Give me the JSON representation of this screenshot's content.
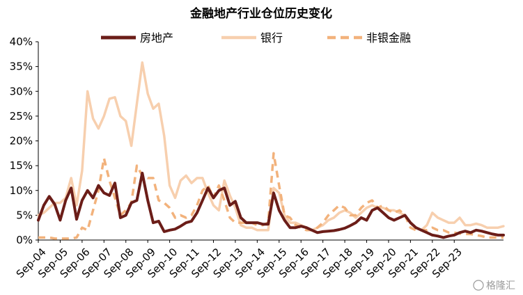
{
  "chart_data": {
    "type": "line",
    "title": "金融地产行业仓位历史变化",
    "xlabel": "",
    "ylabel": "",
    "x_start": "2004-09",
    "x_step_months": 3,
    "x_tick_labels": [
      "Sep-04",
      "Sep-05",
      "Sep-06",
      "Sep-07",
      "Sep-08",
      "Sep-09",
      "Sep-10",
      "Sep-11",
      "Sep-12",
      "Sep-13",
      "Sep-14",
      "Sep-15",
      "Sep-16",
      "Sep-17",
      "Sep-18",
      "Sep-19",
      "Sep-20",
      "Sep-21",
      "Sep-22",
      "Sep-23"
    ],
    "y_tick_labels": [
      "0%",
      "5%",
      "10%",
      "15%",
      "20%",
      "25%",
      "30%",
      "35%",
      "40%"
    ],
    "ylim": [
      0,
      40
    ],
    "y_unit": "%",
    "legend_position": "top",
    "grid": false,
    "series": [
      {
        "name": "房地产",
        "color": "#6b1d18",
        "dash": "solid",
        "values": [
          4.0,
          7.0,
          8.8,
          7.2,
          4.0,
          8.0,
          10.5,
          4.2,
          8.0,
          10.0,
          8.5,
          11.0,
          9.5,
          9.0,
          11.5,
          4.5,
          5.0,
          7.5,
          8.0,
          13.5,
          8.0,
          3.5,
          3.8,
          1.7,
          2.0,
          2.2,
          2.8,
          3.5,
          3.8,
          5.5,
          8.0,
          10.5,
          8.5,
          10.0,
          10.5,
          7.0,
          7.8,
          4.5,
          3.5,
          3.5,
          3.5,
          3.2,
          3.2,
          9.5,
          6.0,
          4.0,
          2.5,
          2.5,
          2.8,
          2.5,
          2.0,
          1.5,
          1.7,
          1.8,
          1.9,
          2.1,
          2.4,
          2.9,
          3.5,
          4.5,
          4.0,
          6.0,
          6.5,
          5.5,
          4.5,
          4.0,
          4.5,
          5.0,
          3.5,
          2.5,
          2.0,
          1.5,
          1.0,
          0.8,
          0.5,
          0.8,
          1.0,
          1.5,
          1.8,
          1.5,
          2.0,
          1.8,
          1.5,
          1.2,
          1.0,
          1.0
        ]
      },
      {
        "name": "银行",
        "color": "#f7cfae",
        "dash": "solid",
        "values": [
          5.0,
          5.5,
          6.5,
          7.5,
          7.5,
          8.5,
          12.5,
          7.0,
          14.0,
          30.0,
          24.5,
          22.5,
          25.0,
          28.5,
          28.8,
          25.0,
          24.0,
          19.0,
          27.5,
          35.8,
          29.5,
          26.5,
          27.5,
          21.0,
          11.0,
          8.5,
          12.0,
          13.0,
          11.5,
          12.5,
          12.5,
          9.5,
          7.0,
          6.0,
          12.0,
          9.0,
          6.5,
          3.0,
          2.5,
          2.5,
          2.0,
          2.0,
          2.0,
          10.5,
          9.5,
          5.0,
          3.5,
          3.5,
          3.0,
          2.5,
          2.0,
          2.5,
          3.0,
          4.0,
          4.5,
          5.5,
          6.0,
          5.5,
          4.5,
          5.5,
          6.5,
          7.0,
          6.5,
          6.5,
          6.0,
          6.0,
          5.5,
          5.0,
          3.5,
          2.5,
          2.0,
          3.0,
          5.5,
          4.5,
          4.0,
          3.5,
          3.5,
          4.5,
          3.0,
          3.0,
          3.3,
          3.0,
          2.5,
          2.5,
          2.5,
          2.8
        ]
      },
      {
        "name": "非银金融",
        "color": "#f2b27c",
        "dash": "dashed",
        "values": [
          0.5,
          0.5,
          0.5,
          0.3,
          0.3,
          0.3,
          0.3,
          0.5,
          2.5,
          2.0,
          6.0,
          10.0,
          16.5,
          12.0,
          8.5,
          5.0,
          6.0,
          7.5,
          15.0,
          13.0,
          12.5,
          12.5,
          8.0,
          7.5,
          6.5,
          4.5,
          5.0,
          4.5,
          5.0,
          7.0,
          10.0,
          11.0,
          8.5,
          11.0,
          8.0,
          4.5,
          3.5,
          3.5,
          3.5,
          3.5,
          3.0,
          3.0,
          3.5,
          17.5,
          11.0,
          5.0,
          4.5,
          3.0,
          2.5,
          2.0,
          2.0,
          2.5,
          3.5,
          5.0,
          6.0,
          7.0,
          6.5,
          5.0,
          5.0,
          6.5,
          7.5,
          8.0,
          6.5,
          7.0,
          6.0,
          5.5,
          6.0,
          5.0,
          2.5,
          2.0,
          2.0,
          2.0,
          2.5,
          2.0,
          2.0,
          1.5,
          1.5,
          1.3,
          1.2,
          1.2,
          1.0,
          0.8,
          0.5,
          0.5,
          0.5,
          0.5
        ]
      }
    ]
  },
  "watermark": {
    "text": "格隆汇"
  }
}
